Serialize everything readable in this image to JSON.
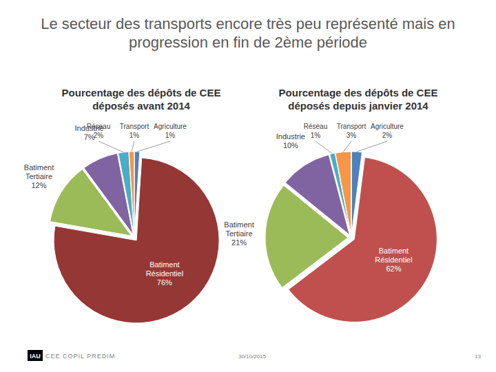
{
  "title": "Le secteur des transports encore très peu représenté mais en progression en fin de 2ème période",
  "footer": {
    "logo": "IAU",
    "text": "CEE COPIL PREDIM",
    "date": "30/10/2015",
    "page": "13"
  },
  "chart_data": [
    {
      "type": "pie",
      "title": "Pourcentage des dépôts de CEE déposés avant 2014",
      "categories": [
        "Agriculture",
        "Batiment Résidentiel",
        "Batiment Tertiaire",
        "Industrie",
        "Réseau",
        "Transport"
      ],
      "values": [
        1,
        76,
        12,
        7,
        2,
        1
      ],
      "value_labels": [
        "1%",
        "76%",
        "12%",
        "7%",
        "2%",
        "1%"
      ],
      "colors": [
        "#4f81bd",
        "#953735",
        "#9bbb59",
        "#8064a2",
        "#4bacc6",
        "#f79646"
      ],
      "data_labels": true
    },
    {
      "type": "pie",
      "title": "Pourcentage des dépôts de CEE déposés depuis janvier 2014",
      "categories": [
        "Agriculture",
        "Batiment Résidentiel",
        "Batiment Tertiaire",
        "Industrie",
        "Réseau",
        "Transport"
      ],
      "values": [
        2,
        62,
        21,
        10,
        1,
        3
      ],
      "value_labels": [
        "2%",
        "62%",
        "21%",
        "10%",
        "1%",
        "3%"
      ],
      "colors": [
        "#4f81bd",
        "#c0504d",
        "#9bbb59",
        "#8064a2",
        "#4bacc6",
        "#f79646"
      ],
      "data_labels": true
    }
  ]
}
